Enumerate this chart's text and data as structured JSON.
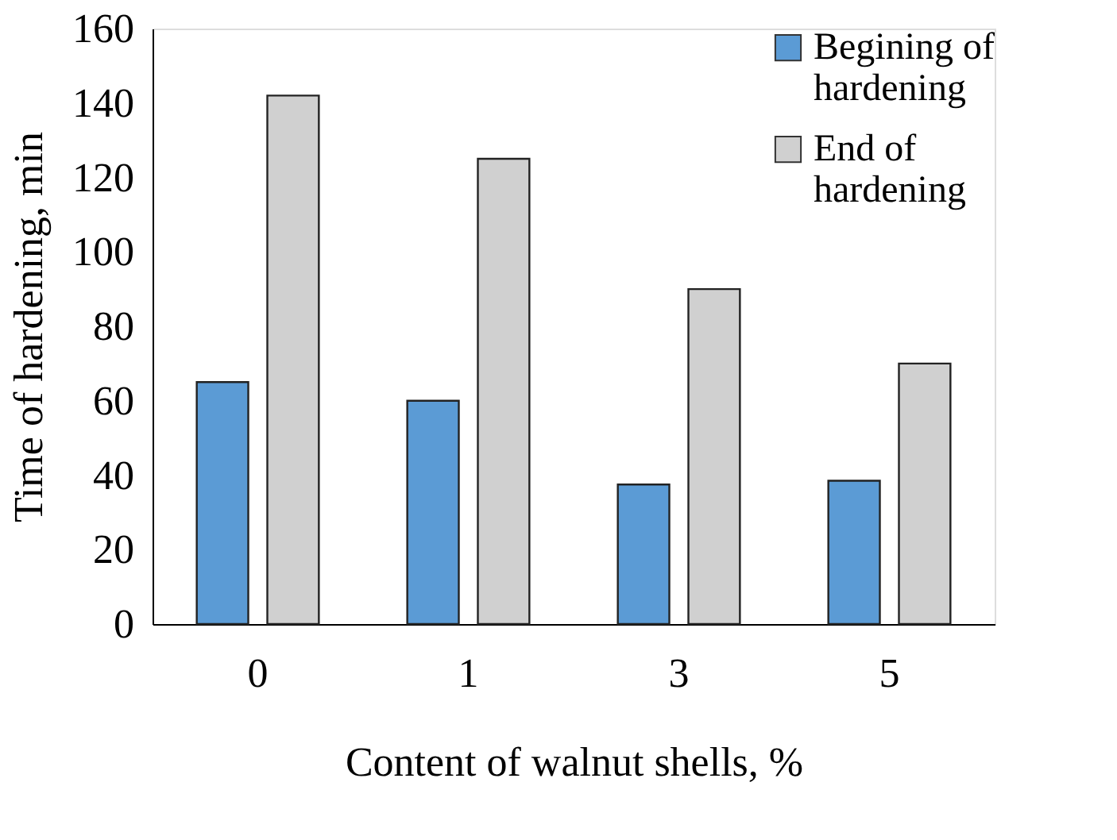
{
  "chart_data": {
    "type": "bar",
    "xlabel": "Content of walnut shells, %",
    "ylabel": "Time of hardening, min",
    "categories": [
      "0",
      "1",
      "3",
      "5"
    ],
    "series": [
      {
        "name": "Begining of hardening",
        "color": "#5b9bd5",
        "values": [
          65,
          60,
          37.5,
          38.5
        ]
      },
      {
        "name": "End of hardening",
        "color": "#d0d0d0",
        "values": [
          142,
          125,
          90,
          70
        ]
      }
    ],
    "ylim": [
      0,
      160
    ],
    "yticks": [
      0,
      20,
      40,
      60,
      80,
      100,
      120,
      140,
      160
    ],
    "grid": false,
    "legend": "top right"
  }
}
